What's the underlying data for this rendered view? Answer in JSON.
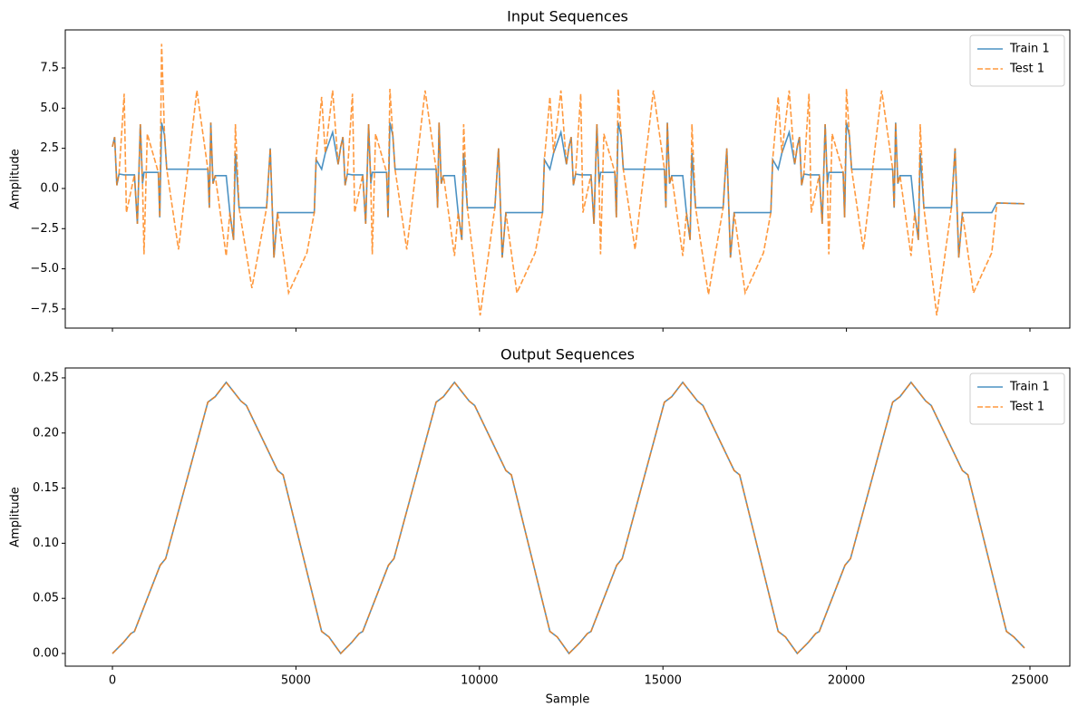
{
  "chart_data": [
    {
      "type": "line",
      "title": "Input Sequences",
      "ylabel": "Amplitude",
      "xlim": [
        -1285,
        26087
      ],
      "ylim": [
        -8.69,
        9.87
      ],
      "xticks": [
        0,
        5000,
        10000,
        15000,
        20000,
        25000
      ],
      "xtick_labels": false,
      "yticks": [
        {
          "value": -7.5,
          "label": "−7.5"
        },
        {
          "value": -5.0,
          "label": "−5.0"
        },
        {
          "value": -2.5,
          "label": "−2.5"
        },
        {
          "value": 0.0,
          "label": "0.0"
        },
        {
          "value": 2.5,
          "label": "2.5"
        },
        {
          "value": 5.0,
          "label": "5.0"
        },
        {
          "value": 7.5,
          "label": "7.5"
        }
      ],
      "legend": "upper right",
      "x": [
        0,
        60,
        120,
        180,
        320,
        380,
        600,
        680,
        760,
        820,
        860,
        950,
        1250,
        1290,
        1340,
        1420,
        1480,
        1800,
        2300,
        2600,
        2640,
        2680,
        2740,
        2800,
        3100,
        3200,
        3300,
        3350,
        3450,
        3800,
        4200,
        4300,
        4400,
        4500,
        4800,
        5300,
        5500,
        5550,
        5700,
        5800,
        6000,
        6150,
        6220,
        6280,
        6340,
        6400,
        6540,
        6600,
        6820,
        6900,
        6980,
        7040,
        7080,
        7170,
        7470,
        7510,
        7560,
        7640,
        7700,
        8020,
        8520,
        8820,
        8860,
        8900,
        8960,
        9020,
        9320,
        9420,
        9520,
        9570,
        9670,
        10020,
        10420,
        10520,
        10620,
        10720,
        11020,
        11520,
        11720,
        11770,
        11920,
        12020,
        12220,
        12370,
        12440,
        12500,
        12560,
        12620,
        12760,
        12820,
        13040,
        13120,
        13200,
        13260,
        13300,
        13390,
        13690,
        13730,
        13780,
        13860,
        13920,
        14240,
        14740,
        15040,
        15080,
        15120,
        15180,
        15240,
        15540,
        15640,
        15740,
        15790,
        15890,
        16240,
        16640,
        16740,
        16840,
        16940,
        17240,
        17740,
        17940,
        17990,
        18140,
        18240,
        18440,
        18590,
        18660,
        18720,
        18780,
        18840,
        18980,
        19040,
        19260,
        19340,
        19420,
        19480,
        19520,
        19610,
        19910,
        19950,
        20000,
        20080,
        20140,
        20460,
        20960,
        21260,
        21300,
        21340,
        21400,
        21460,
        21760,
        21860,
        21960,
        22010,
        22110,
        22460,
        22860,
        22960,
        23060,
        23160,
        23460,
        23960,
        24100,
        24850
      ],
      "series": [
        {
          "name": "Train 1",
          "color": "#1f77b4",
          "linestyle": "solid",
          "values": [
            2.6,
            3.2,
            0.2,
            0.9,
            0.85,
            0.85,
            0.85,
            -2.2,
            4.0,
            0.3,
            1.0,
            1.0,
            1.0,
            -1.8,
            4.1,
            3.3,
            1.2,
            1.2,
            1.2,
            1.2,
            -1.2,
            4.1,
            0.3,
            0.8,
            0.8,
            -1.5,
            -3.2,
            2.2,
            -1.2,
            -1.2,
            -1.2,
            2.5,
            -4.3,
            -1.5,
            -1.5,
            -1.5,
            -1.5,
            1.8,
            1.2,
            2.2,
            3.5,
            1.5,
            2.6,
            3.2,
            0.2,
            0.9,
            0.85,
            0.85,
            0.85,
            -2.2,
            4.0,
            0.3,
            1.0,
            1.0,
            1.0,
            -1.8,
            4.1,
            3.3,
            1.2,
            1.2,
            1.2,
            1.2,
            -1.2,
            4.1,
            0.3,
            0.8,
            0.8,
            -1.5,
            -3.2,
            2.2,
            -1.2,
            -1.2,
            -1.2,
            2.5,
            -4.3,
            -1.5,
            -1.5,
            -1.5,
            -1.5,
            1.8,
            1.2,
            2.2,
            3.5,
            1.5,
            2.6,
            3.2,
            0.2,
            0.9,
            0.85,
            0.85,
            0.85,
            -2.2,
            4.0,
            0.3,
            1.0,
            1.0,
            1.0,
            -1.8,
            4.1,
            3.3,
            1.2,
            1.2,
            1.2,
            1.2,
            -1.2,
            4.1,
            0.3,
            0.8,
            0.8,
            -1.5,
            -3.2,
            2.2,
            -1.2,
            -1.2,
            -1.2,
            2.5,
            -4.3,
            -1.5,
            -1.5,
            -1.5,
            -1.5,
            1.8,
            1.2,
            2.2,
            3.5,
            1.5,
            2.6,
            3.2,
            0.2,
            0.9,
            0.85,
            0.85,
            0.85,
            -2.2,
            4.0,
            0.3,
            1.0,
            1.0,
            1.0,
            -1.8,
            4.1,
            3.3,
            1.2,
            1.2,
            1.2,
            1.2,
            -1.2,
            4.1,
            0.3,
            0.8,
            0.8,
            -1.5,
            -3.2,
            2.2,
            -1.2,
            -1.2,
            -1.2,
            2.5,
            -4.3,
            -1.5,
            -1.5,
            -1.5,
            -0.9,
            -0.95
          ]
        },
        {
          "name": "Test 1",
          "color": "#ff7f0e",
          "linestyle": "dashed",
          "values": [
            2.6,
            3.2,
            0.2,
            0.9,
            5.9,
            -1.5,
            0.85,
            -2.2,
            4.0,
            0.3,
            -4.1,
            3.4,
            1.0,
            -1.8,
            9.0,
            3.3,
            1.2,
            -3.8,
            6.1,
            1.2,
            -1.2,
            4.1,
            0.3,
            0.8,
            -4.2,
            -1.5,
            -3.2,
            4.0,
            -1.2,
            -6.2,
            -1.2,
            2.5,
            -4.3,
            -1.5,
            -6.5,
            -4.0,
            -1.5,
            1.8,
            5.7,
            2.2,
            6.1,
            1.5,
            2.6,
            3.2,
            0.2,
            0.9,
            5.9,
            -1.5,
            0.85,
            -2.2,
            4.0,
            0.3,
            -4.1,
            3.4,
            1.0,
            -1.8,
            6.2,
            3.3,
            1.2,
            -3.8,
            6.1,
            1.2,
            -1.2,
            4.1,
            0.3,
            0.8,
            -4.2,
            -1.5,
            -3.2,
            4.0,
            -1.2,
            -7.9,
            -1.2,
            2.5,
            -4.3,
            -1.5,
            -6.5,
            -4.0,
            -1.5,
            1.8,
            5.7,
            2.2,
            6.1,
            1.5,
            2.6,
            3.2,
            0.2,
            0.9,
            5.9,
            -1.5,
            0.85,
            -2.2,
            4.0,
            0.3,
            -4.1,
            3.4,
            1.0,
            -1.8,
            6.2,
            3.3,
            1.2,
            -3.8,
            6.1,
            1.2,
            -1.2,
            4.1,
            0.3,
            0.8,
            -4.2,
            -1.5,
            -3.2,
            4.0,
            -1.2,
            -6.6,
            -1.2,
            2.5,
            -4.3,
            -1.5,
            -6.5,
            -4.0,
            -1.5,
            1.8,
            5.7,
            2.2,
            6.1,
            1.5,
            2.6,
            3.2,
            0.2,
            0.9,
            5.9,
            -1.5,
            0.85,
            -2.2,
            4.0,
            0.3,
            -4.1,
            3.4,
            1.0,
            -1.8,
            6.2,
            3.3,
            1.2,
            -3.8,
            6.1,
            1.2,
            -1.2,
            4.1,
            0.3,
            0.8,
            -4.2,
            -1.5,
            -3.2,
            4.0,
            -1.2,
            -7.9,
            -1.2,
            2.5,
            -4.3,
            -1.5,
            -6.5,
            -4.0,
            -0.9,
            -0.95
          ]
        }
      ]
    },
    {
      "type": "line",
      "title": "Output Sequences",
      "xlabel": "Sample",
      "ylabel": "Amplitude",
      "xlim": [
        -1285,
        26087
      ],
      "ylim": [
        -0.0115,
        0.259
      ],
      "xticks": [
        0,
        5000,
        10000,
        15000,
        20000,
        25000
      ],
      "yticks": [
        {
          "value": 0.0,
          "label": "0.00"
        },
        0.05,
        {
          "value": 0.1,
          "label": "0.10"
        },
        0.15,
        {
          "value": 0.2,
          "label": "0.20"
        },
        0.25
      ],
      "legend": "upper right",
      "x": [
        0,
        300,
        500,
        600,
        1300,
        1450,
        2600,
        2800,
        3100,
        3500,
        3650,
        4500,
        4650,
        5700,
        5900,
        6220,
        6520,
        6720,
        6820,
        7520,
        7670,
        8820,
        9020,
        9320,
        9720,
        9870,
        10720,
        10870,
        11920,
        12120,
        12440,
        12740,
        12940,
        13040,
        13740,
        13890,
        15040,
        15240,
        15540,
        15940,
        16090,
        16940,
        17090,
        18140,
        18340,
        18660,
        18960,
        19160,
        19260,
        19960,
        20110,
        21260,
        21460,
        21760,
        22160,
        22310,
        23160,
        23310,
        24360,
        24560,
        24850
      ],
      "series": [
        {
          "name": "Train 1",
          "color": "#1f77b4",
          "linestyle": "solid",
          "values": [
            0,
            0.01,
            0.018,
            0.02,
            0.08,
            0.086,
            0.228,
            0.233,
            0.246,
            0.229,
            0.225,
            0.166,
            0.162,
            0.02,
            0.015,
            0,
            0.01,
            0.018,
            0.02,
            0.08,
            0.086,
            0.228,
            0.233,
            0.246,
            0.229,
            0.225,
            0.166,
            0.162,
            0.02,
            0.015,
            0,
            0.01,
            0.018,
            0.02,
            0.08,
            0.086,
            0.228,
            0.233,
            0.246,
            0.229,
            0.225,
            0.166,
            0.162,
            0.02,
            0.015,
            0,
            0.01,
            0.018,
            0.02,
            0.08,
            0.086,
            0.228,
            0.233,
            0.246,
            0.229,
            0.225,
            0.166,
            0.162,
            0.02,
            0.015,
            0.005
          ]
        },
        {
          "name": "Test 1",
          "color": "#ff7f0e",
          "linestyle": "dashed",
          "values": [
            0,
            0.01,
            0.018,
            0.02,
            0.08,
            0.086,
            0.228,
            0.233,
            0.246,
            0.229,
            0.225,
            0.166,
            0.162,
            0.02,
            0.015,
            0,
            0.01,
            0.018,
            0.02,
            0.08,
            0.086,
            0.228,
            0.233,
            0.246,
            0.229,
            0.225,
            0.166,
            0.162,
            0.02,
            0.015,
            0,
            0.01,
            0.018,
            0.02,
            0.08,
            0.086,
            0.228,
            0.233,
            0.246,
            0.229,
            0.225,
            0.166,
            0.162,
            0.02,
            0.015,
            0,
            0.01,
            0.018,
            0.02,
            0.08,
            0.086,
            0.228,
            0.233,
            0.246,
            0.229,
            0.225,
            0.166,
            0.162,
            0.02,
            0.015,
            0.005
          ]
        }
      ]
    }
  ]
}
